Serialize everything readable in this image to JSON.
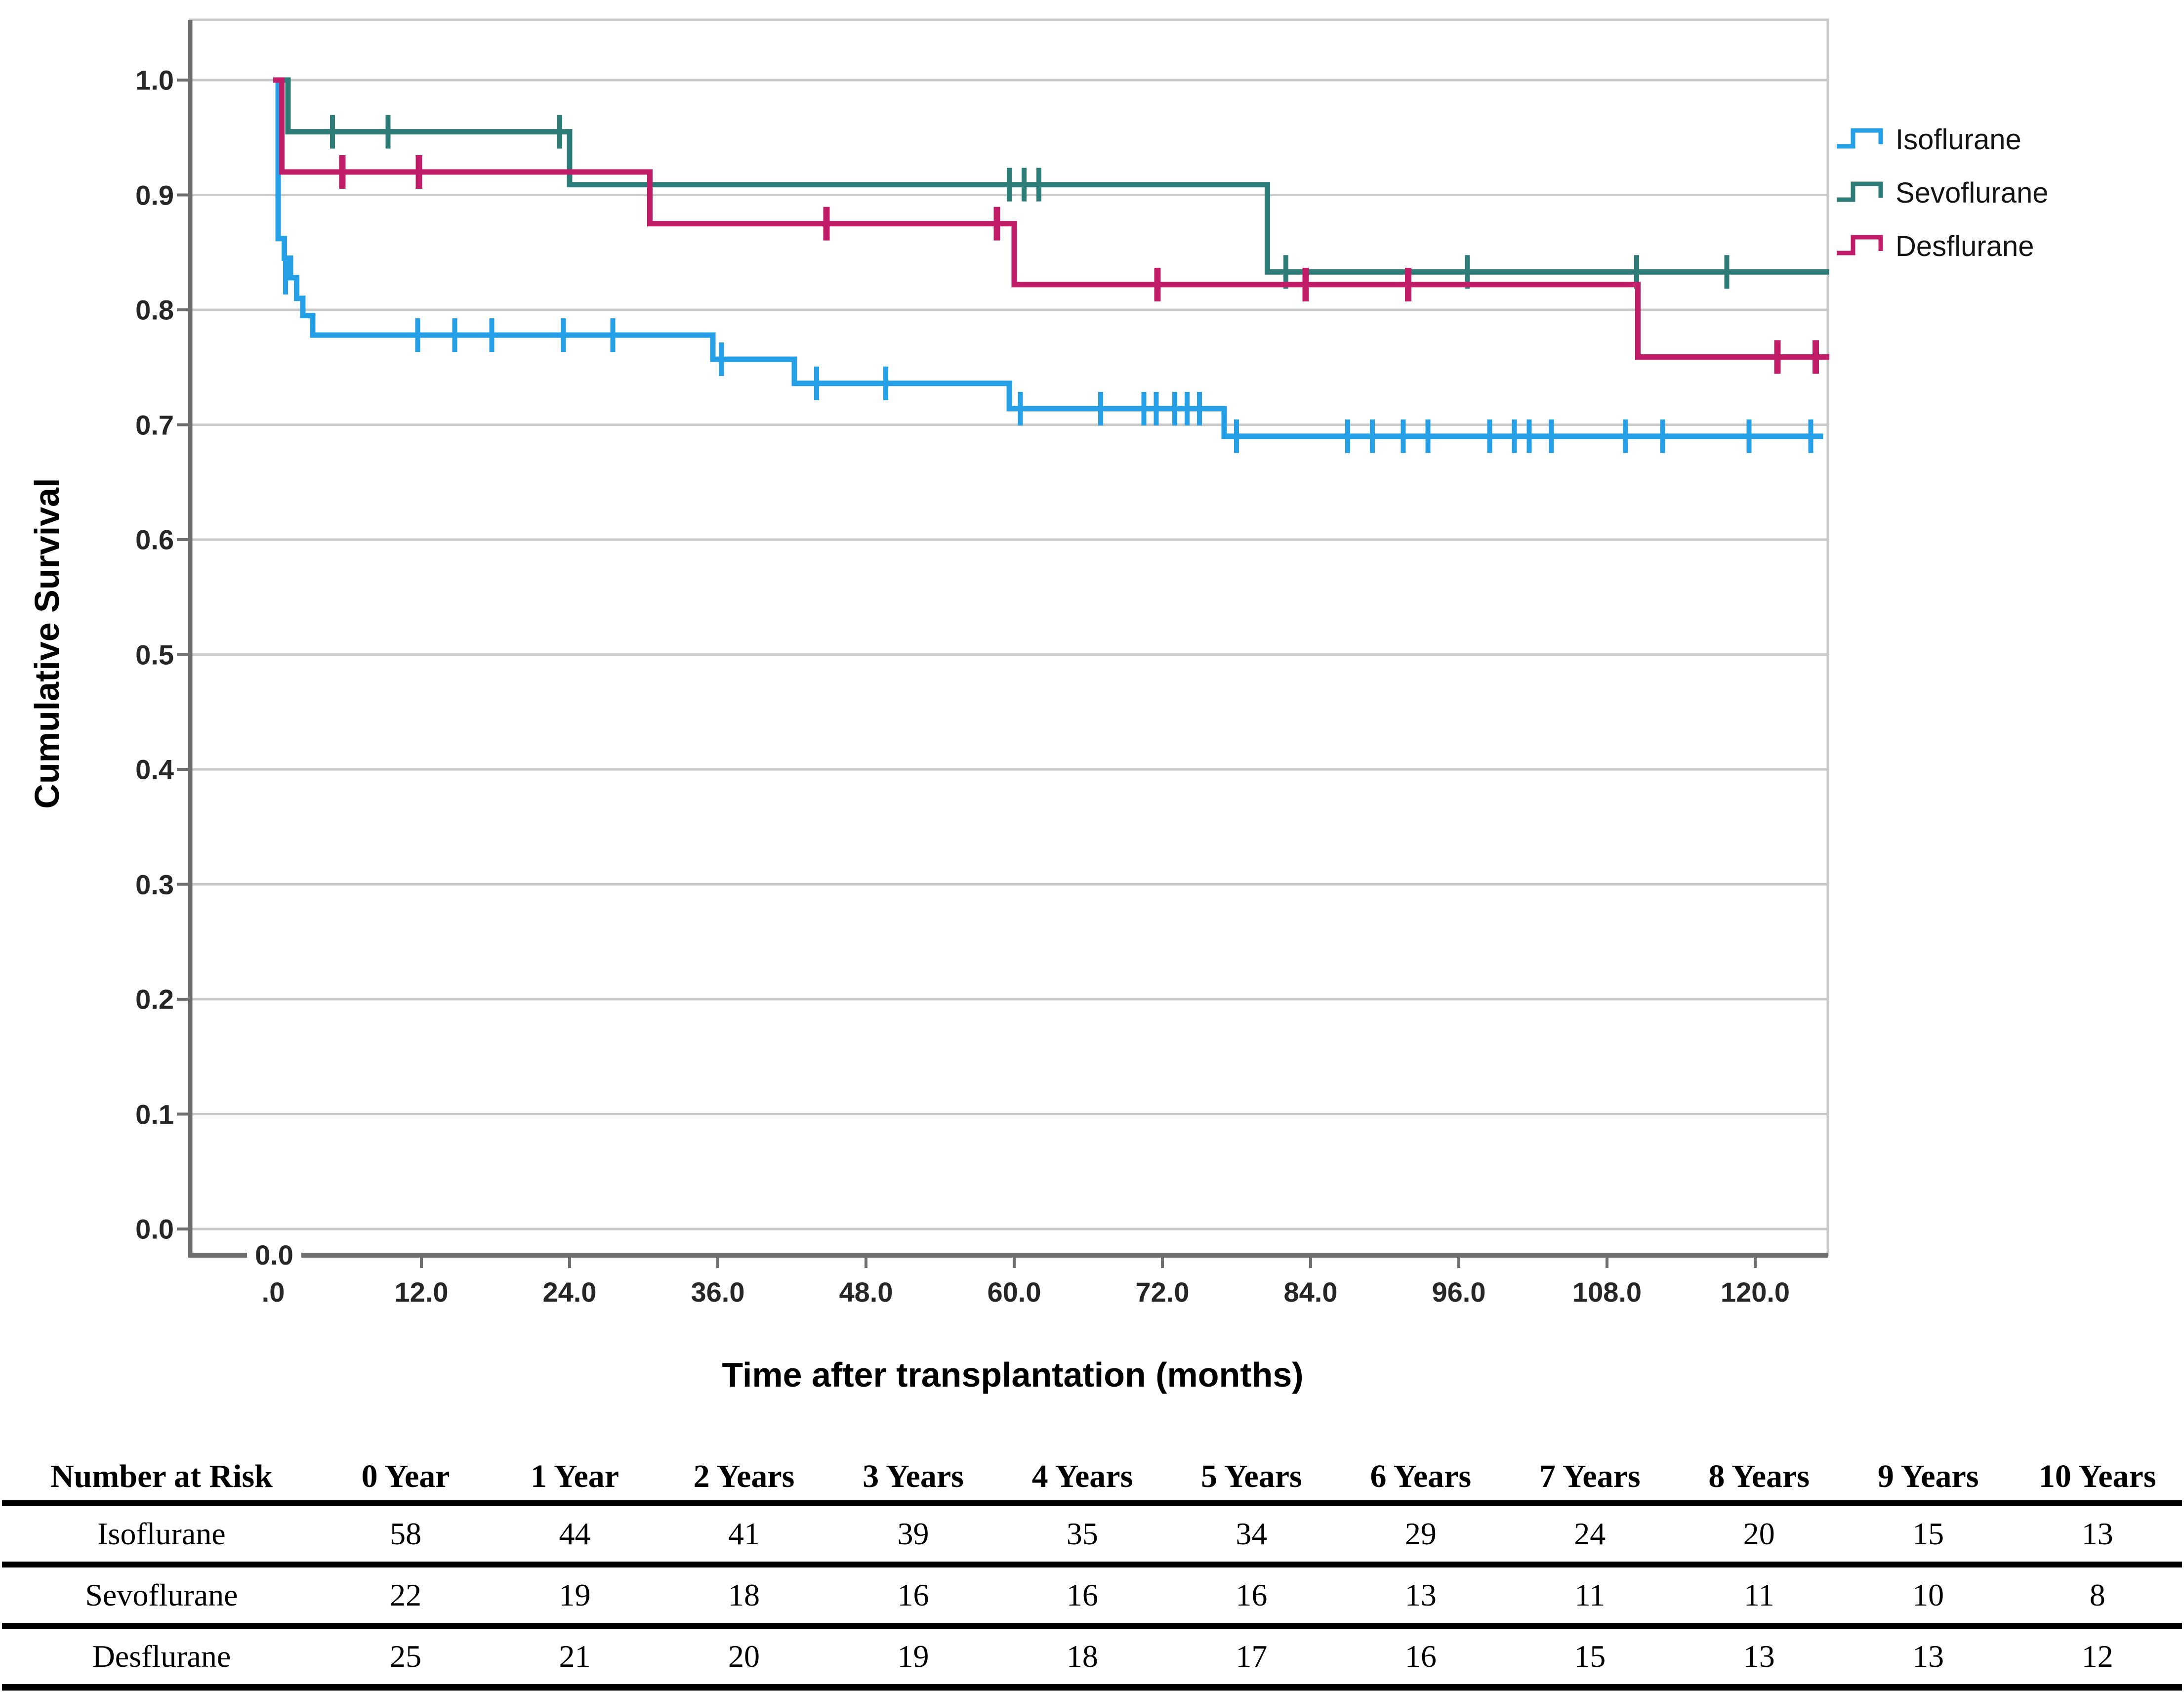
{
  "colors": {
    "isoflurane": "#259FE6",
    "sevoflurane": "#2E7C77",
    "desflurane": "#C01C67",
    "grid": "#C9C9C9",
    "frame": "#C9C9C9",
    "spine": "#6F6F6F",
    "tick_text": "#262626"
  },
  "chart": {
    "ylabel": "Cumulative Survival",
    "xlabel": "Time after transplantation (months)",
    "origin_label": "0.0",
    "y_ticks": [
      {
        "value": 1.0,
        "label": "1.0"
      },
      {
        "value": 0.9,
        "label": "0.9"
      },
      {
        "value": 0.8,
        "label": "0.8"
      },
      {
        "value": 0.7,
        "label": "0.7"
      },
      {
        "value": 0.6,
        "label": "0.6"
      },
      {
        "value": 0.5,
        "label": "0.5"
      },
      {
        "value": 0.4,
        "label": "0.4"
      },
      {
        "value": 0.3,
        "label": "0.3"
      },
      {
        "value": 0.2,
        "label": "0.2"
      },
      {
        "value": 0.1,
        "label": "0.1"
      },
      {
        "value": 0.0,
        "label": "0.0"
      }
    ],
    "x_ticks": [
      {
        "value": 0,
        "label": ".0"
      },
      {
        "value": 12,
        "label": "12.0"
      },
      {
        "value": 24,
        "label": "24.0"
      },
      {
        "value": 36,
        "label": "36.0"
      },
      {
        "value": 48,
        "label": "48.0"
      },
      {
        "value": 60,
        "label": "60.0"
      },
      {
        "value": 72,
        "label": "72.0"
      },
      {
        "value": 84,
        "label": "84.0"
      },
      {
        "value": 96,
        "label": "96.0"
      },
      {
        "value": 108,
        "label": "108.0"
      },
      {
        "value": 120,
        "label": "120.0"
      }
    ],
    "legend": [
      {
        "label": "Isoflurane",
        "color_key": "isoflurane"
      },
      {
        "label": "Sevoflurane",
        "color_key": "sevoflurane"
      },
      {
        "label": "Desflurane",
        "color_key": "desflurane"
      }
    ]
  },
  "chart_data": {
    "type": "line",
    "subtype": "kaplan-meier-step",
    "title": "",
    "xlabel": "Time after transplantation (months)",
    "ylabel": "Cumulative Survival",
    "xlim": [
      -6.7,
      126
    ],
    "ylim": [
      -0.023,
      1.052
    ],
    "grid": true,
    "legend_position": "right-top-outside",
    "series": [
      {
        "name": "Isoflurane",
        "color_key": "isoflurane",
        "censor_stroke": 10,
        "end": 125.5,
        "steps": [
          [
            0,
            1.0
          ],
          [
            0.4,
            0.862
          ],
          [
            0.9,
            0.845
          ],
          [
            1.4,
            0.828
          ],
          [
            1.9,
            0.81
          ],
          [
            2.4,
            0.795
          ],
          [
            3.2,
            0.778
          ],
          [
            35.6,
            0.757
          ],
          [
            42.2,
            0.736
          ],
          [
            59.6,
            0.714
          ],
          [
            77,
            0.69
          ]
        ],
        "censors": [
          [
            1.0,
            0.828
          ],
          [
            11.7,
            0.778
          ],
          [
            14.7,
            0.778
          ],
          [
            17.7,
            0.778
          ],
          [
            23.5,
            0.778
          ],
          [
            27.5,
            0.778
          ],
          [
            36.3,
            0.757
          ],
          [
            44,
            0.736
          ],
          [
            49.6,
            0.736
          ],
          [
            60.5,
            0.714
          ],
          [
            67,
            0.714
          ],
          [
            70.5,
            0.714
          ],
          [
            71.5,
            0.714
          ],
          [
            73,
            0.714
          ],
          [
            74,
            0.714
          ],
          [
            75,
            0.714
          ],
          [
            78,
            0.69
          ],
          [
            87,
            0.69
          ],
          [
            89,
            0.69
          ],
          [
            91.5,
            0.69
          ],
          [
            93.5,
            0.69
          ],
          [
            98.5,
            0.69
          ],
          [
            100.5,
            0.69
          ],
          [
            101.7,
            0.69
          ],
          [
            103.5,
            0.69
          ],
          [
            109.5,
            0.69
          ],
          [
            112.5,
            0.69
          ],
          [
            119.5,
            0.69
          ],
          [
            124.5,
            0.69
          ]
        ]
      },
      {
        "name": "Sevoflurane",
        "color_key": "sevoflurane",
        "censor_stroke": 10,
        "end": 126,
        "steps": [
          [
            0,
            1.0
          ],
          [
            1.2,
            0.955
          ],
          [
            24,
            0.909
          ],
          [
            80.5,
            0.833
          ]
        ],
        "censors": [
          [
            4.8,
            0.955
          ],
          [
            9.3,
            0.955
          ],
          [
            23.2,
            0.955
          ],
          [
            59.6,
            0.909
          ],
          [
            60.8,
            0.909
          ],
          [
            62,
            0.909
          ],
          [
            82,
            0.833
          ],
          [
            96.7,
            0.833
          ],
          [
            110.4,
            0.833
          ],
          [
            117.7,
            0.833
          ]
        ]
      },
      {
        "name": "Desflurane",
        "color_key": "desflurane",
        "censor_stroke": 13,
        "end": 126,
        "steps": [
          [
            0,
            1.0
          ],
          [
            0.7,
            0.92
          ],
          [
            30.5,
            0.875
          ],
          [
            60,
            0.822
          ],
          [
            110.5,
            0.759
          ]
        ],
        "censors": [
          [
            5.6,
            0.92
          ],
          [
            11.8,
            0.92
          ],
          [
            44.8,
            0.875
          ],
          [
            58.6,
            0.875
          ],
          [
            71.6,
            0.822
          ],
          [
            83.6,
            0.822
          ],
          [
            91.9,
            0.822
          ],
          [
            121.8,
            0.759
          ],
          [
            124.9,
            0.759
          ]
        ]
      }
    ]
  },
  "table": {
    "header": [
      "Number at Risk",
      "0 Year",
      "1 Year",
      "2 Years",
      "3 Years",
      "4 Years",
      "5 Years",
      "6 Years",
      "7 Years",
      "8 Years",
      "9 Years",
      "10 Years"
    ],
    "rows": [
      {
        "label": "Isoflurane",
        "values": [
          58,
          44,
          41,
          39,
          35,
          34,
          29,
          24,
          20,
          15,
          13
        ]
      },
      {
        "label": "Sevoflurane",
        "values": [
          22,
          19,
          18,
          16,
          16,
          16,
          13,
          11,
          11,
          10,
          8
        ]
      },
      {
        "label": "Desflurane",
        "values": [
          25,
          21,
          20,
          19,
          18,
          17,
          16,
          15,
          13,
          13,
          12
        ]
      }
    ]
  }
}
